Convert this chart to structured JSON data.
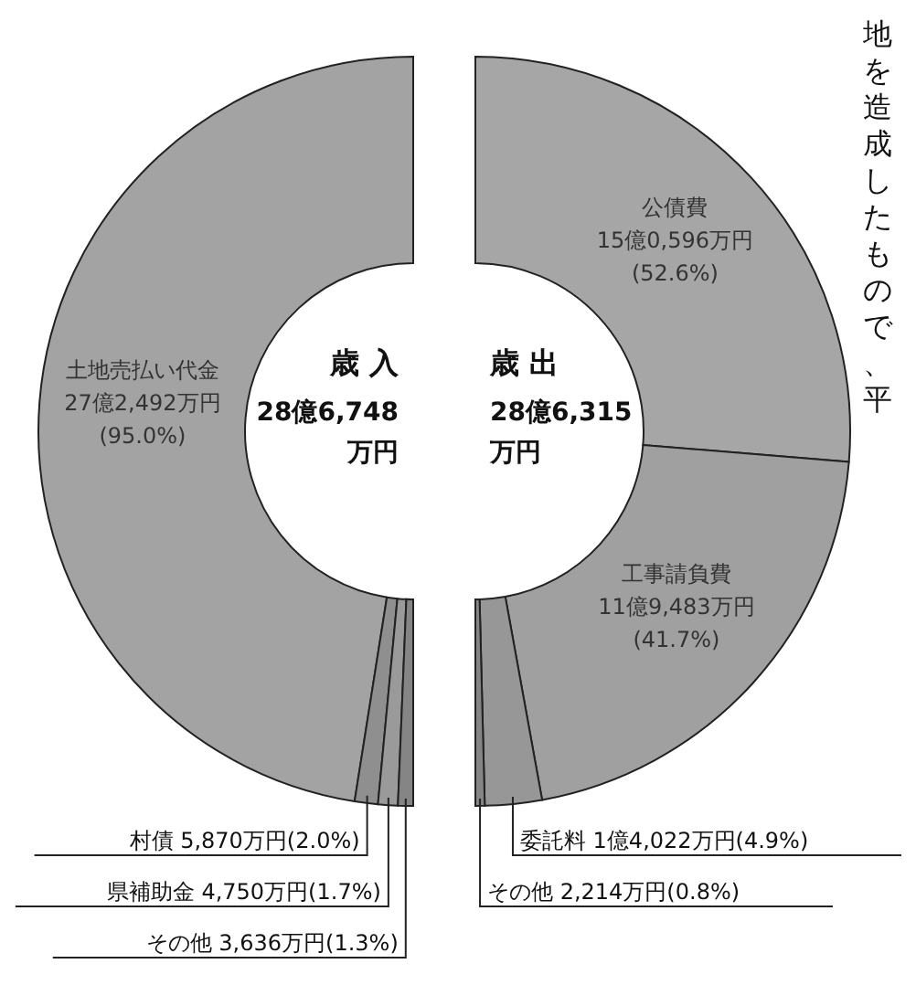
{
  "chart_data": [
    {
      "type": "donut",
      "title": "歳 入",
      "subtitle": "28億6,748万円",
      "categories": [
        "土地売払い代金",
        "村債",
        "県補助金",
        "その他"
      ],
      "values": [
        95.0,
        2.0,
        1.7,
        1.3
      ],
      "value_labels": [
        "27億2,492万円(95.0%)",
        "5,870万円(2.0%)",
        "4,750万円(1.7%)",
        "3,636万円(1.3%)"
      ],
      "colors": [
        "#a3a3a3",
        "#8f8f8f",
        "#9a9a9a",
        "#858585"
      ]
    },
    {
      "type": "donut",
      "title": "歳 出",
      "subtitle": "28億6,315万円",
      "categories": [
        "公債費",
        "工事請負費",
        "委託料",
        "その他"
      ],
      "values": [
        52.6,
        41.7,
        4.9,
        0.8
      ],
      "value_labels": [
        "15億0,596万円(52.6%)",
        "11億9,483万円(41.7%)",
        "1億4,022万円(4.9%)",
        "2,214万円(0.8%)"
      ],
      "colors": [
        "#a6a6a6",
        "#a0a0a0",
        "#979797",
        "#858585"
      ],
      "annotations": [
        "地を造成したもので、平"
      ]
    }
  ]
}
